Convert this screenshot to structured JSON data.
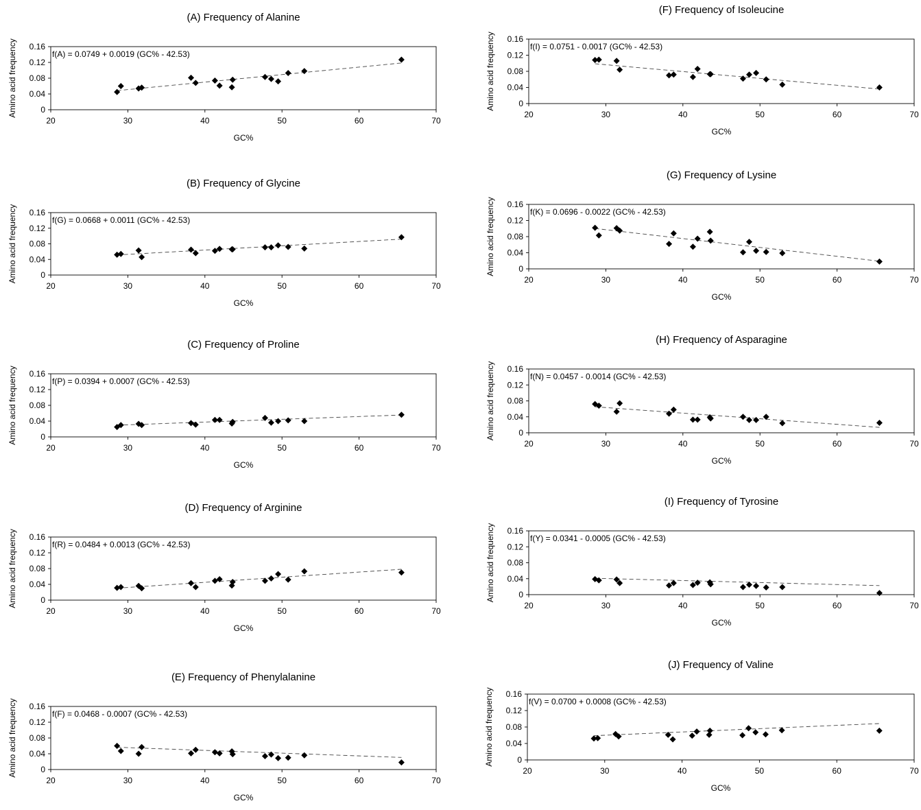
{
  "colors": {
    "marker": "#000000",
    "frame": "#000000",
    "trendline": "#444444"
  },
  "chart_data": [
    {
      "type": "scatter",
      "title": "(A) Frequency of Alanine",
      "xlabel": "GC%",
      "ylabel": "Amino acid frequency",
      "xlim": [
        20,
        70
      ],
      "ylim": [
        0,
        0.16
      ],
      "xticks": [
        "20",
        "30",
        "40",
        "50",
        "60",
        "70"
      ],
      "yticks": [
        "0",
        "0.04",
        "0.08",
        "0.12",
        "0.16"
      ],
      "grid": false,
      "equation": "f(A) = 0.0749 + 0.0019 (GC% - 42.53)",
      "trend": {
        "intercept": 0.0749,
        "slope": 0.0019,
        "center": 42.53
      },
      "series": [
        {
          "points": [
            [
              28.6,
              0.045
            ],
            [
              29.1,
              0.06
            ],
            [
              31.4,
              0.054
            ],
            [
              31.8,
              0.056
            ],
            [
              38.2,
              0.081
            ],
            [
              38.8,
              0.068
            ],
            [
              41.3,
              0.074
            ],
            [
              41.9,
              0.061
            ],
            [
              43.5,
              0.057
            ],
            [
              43.6,
              0.076
            ],
            [
              47.8,
              0.083
            ],
            [
              48.6,
              0.078
            ],
            [
              49.5,
              0.072
            ],
            [
              50.8,
              0.093
            ],
            [
              52.9,
              0.098
            ],
            [
              65.5,
              0.127
            ]
          ]
        }
      ]
    },
    {
      "type": "scatter",
      "title": "(B) Frequency of Glycine",
      "xlabel": "GC%",
      "ylabel": "Amino acid frequency",
      "xlim": [
        20,
        70
      ],
      "ylim": [
        0,
        0.16
      ],
      "xticks": [
        "20",
        "30",
        "40",
        "50",
        "60",
        "70"
      ],
      "yticks": [
        "0",
        "0.04",
        "0.08",
        "0.12",
        "0.16"
      ],
      "grid": false,
      "equation": "f(G) = 0.0668 + 0.0011 (GC% - 42.53)",
      "trend": {
        "intercept": 0.0668,
        "slope": 0.0011,
        "center": 42.53
      },
      "series": [
        {
          "points": [
            [
              28.6,
              0.052
            ],
            [
              29.1,
              0.054
            ],
            [
              31.4,
              0.063
            ],
            [
              31.8,
              0.046
            ],
            [
              38.2,
              0.065
            ],
            [
              38.8,
              0.056
            ],
            [
              41.3,
              0.062
            ],
            [
              41.9,
              0.067
            ],
            [
              43.5,
              0.066
            ],
            [
              43.6,
              0.066
            ],
            [
              47.8,
              0.071
            ],
            [
              48.6,
              0.071
            ],
            [
              49.5,
              0.076
            ],
            [
              50.8,
              0.072
            ],
            [
              52.9,
              0.068
            ],
            [
              65.5,
              0.097
            ]
          ]
        }
      ]
    },
    {
      "type": "scatter",
      "title": "(C) Frequency of Proline",
      "xlabel": "GC%",
      "ylabel": "Amino acid frequency",
      "xlim": [
        20,
        70
      ],
      "ylim": [
        0,
        0.16
      ],
      "xticks": [
        "20",
        "30",
        "40",
        "50",
        "60",
        "70"
      ],
      "yticks": [
        "0",
        "0.04",
        "0.08",
        "0.12",
        "0.16"
      ],
      "grid": false,
      "equation": "f(P) = 0.0394 + 0.0007 (GC% - 42.53)",
      "trend": {
        "intercept": 0.0394,
        "slope": 0.0007,
        "center": 42.53
      },
      "series": [
        {
          "points": [
            [
              28.6,
              0.025
            ],
            [
              29.1,
              0.03
            ],
            [
              31.4,
              0.033
            ],
            [
              31.8,
              0.03
            ],
            [
              38.2,
              0.035
            ],
            [
              38.8,
              0.031
            ],
            [
              41.3,
              0.043
            ],
            [
              41.9,
              0.043
            ],
            [
              43.5,
              0.034
            ],
            [
              43.6,
              0.038
            ],
            [
              47.8,
              0.048
            ],
            [
              48.6,
              0.036
            ],
            [
              49.5,
              0.04
            ],
            [
              50.8,
              0.042
            ],
            [
              52.9,
              0.04
            ],
            [
              65.5,
              0.056
            ]
          ]
        }
      ]
    },
    {
      "type": "scatter",
      "title": "(D) Frequency of Arginine",
      "xlabel": "GC%",
      "ylabel": "Amino acid frequency",
      "xlim": [
        20,
        70
      ],
      "ylim": [
        0,
        0.16
      ],
      "xticks": [
        "20",
        "30",
        "40",
        "50",
        "60",
        "70"
      ],
      "yticks": [
        "0",
        "0.04",
        "0.08",
        "0.12",
        "0.16"
      ],
      "grid": false,
      "equation": "f(R) = 0.0484 + 0.0013 (GC% - 42.53)",
      "trend": {
        "intercept": 0.0484,
        "slope": 0.0013,
        "center": 42.53
      },
      "series": [
        {
          "points": [
            [
              28.6,
              0.031
            ],
            [
              29.1,
              0.033
            ],
            [
              31.4,
              0.036
            ],
            [
              31.8,
              0.03
            ],
            [
              38.2,
              0.043
            ],
            [
              38.8,
              0.033
            ],
            [
              41.3,
              0.049
            ],
            [
              41.9,
              0.053
            ],
            [
              43.5,
              0.037
            ],
            [
              43.6,
              0.046
            ],
            [
              47.8,
              0.049
            ],
            [
              48.6,
              0.055
            ],
            [
              49.5,
              0.066
            ],
            [
              50.8,
              0.052
            ],
            [
              52.9,
              0.073
            ],
            [
              65.5,
              0.07
            ]
          ]
        }
      ]
    },
    {
      "type": "scatter",
      "title": "(E) Frequency of Phenylalanine",
      "xlabel": "GC%",
      "ylabel": "Amino acid frequency",
      "xlim": [
        20,
        70
      ],
      "ylim": [
        0,
        0.16
      ],
      "xticks": [
        "20",
        "30",
        "40",
        "50",
        "60",
        "70"
      ],
      "yticks": [
        "0",
        "0.04",
        "0.08",
        "0.12",
        "0.16"
      ],
      "grid": false,
      "equation": "f(F) = 0.0468 - 0.0007 (GC% - 42.53)",
      "trend": {
        "intercept": 0.0468,
        "slope": -0.0007,
        "center": 42.53
      },
      "series": [
        {
          "points": [
            [
              28.6,
              0.06
            ],
            [
              29.1,
              0.047
            ],
            [
              31.4,
              0.04
            ],
            [
              31.8,
              0.057
            ],
            [
              38.2,
              0.041
            ],
            [
              38.8,
              0.05
            ],
            [
              41.3,
              0.044
            ],
            [
              41.9,
              0.041
            ],
            [
              43.5,
              0.046
            ],
            [
              43.6,
              0.039
            ],
            [
              47.8,
              0.034
            ],
            [
              48.6,
              0.038
            ],
            [
              49.5,
              0.029
            ],
            [
              50.8,
              0.03
            ],
            [
              52.9,
              0.036
            ],
            [
              65.5,
              0.018
            ]
          ]
        }
      ]
    },
    {
      "type": "scatter",
      "title": "(F) Frequency of Isoleucine",
      "xlabel": "GC%",
      "ylabel": "Amino acid frequency",
      "xlim": [
        20,
        70
      ],
      "ylim": [
        0,
        0.16
      ],
      "xticks": [
        "20",
        "30",
        "40",
        "50",
        "60",
        "70"
      ],
      "yticks": [
        "0",
        "0.04",
        "0.08",
        "0.12",
        "0.16"
      ],
      "grid": false,
      "equation": "f(I) = 0.0751 - 0.0017 (GC% - 42.53)",
      "trend": {
        "intercept": 0.0751,
        "slope": -0.0017,
        "center": 42.53
      },
      "series": [
        {
          "points": [
            [
              28.6,
              0.108
            ],
            [
              29.1,
              0.109
            ],
            [
              31.4,
              0.106
            ],
            [
              31.8,
              0.084
            ],
            [
              38.2,
              0.07
            ],
            [
              38.8,
              0.072
            ],
            [
              41.3,
              0.066
            ],
            [
              41.9,
              0.086
            ],
            [
              43.5,
              0.073
            ],
            [
              43.6,
              0.073
            ],
            [
              47.8,
              0.062
            ],
            [
              48.6,
              0.072
            ],
            [
              49.5,
              0.076
            ],
            [
              50.8,
              0.06
            ],
            [
              52.9,
              0.047
            ],
            [
              65.5,
              0.04
            ]
          ]
        }
      ]
    },
    {
      "type": "scatter",
      "title": "(G) Frequency of Lysine",
      "xlabel": "GC%",
      "ylabel": "Amino acid frequency",
      "xlim": [
        20,
        70
      ],
      "ylim": [
        0,
        0.16
      ],
      "xticks": [
        "20",
        "30",
        "40",
        "50",
        "60",
        "70"
      ],
      "yticks": [
        "0",
        "0.04",
        "0.08",
        "0.12",
        "0.16"
      ],
      "grid": false,
      "equation": "f(K) = 0.0696 - 0.0022 (GC% - 42.53)",
      "trend": {
        "intercept": 0.0696,
        "slope": -0.0022,
        "center": 42.53
      },
      "series": [
        {
          "points": [
            [
              28.6,
              0.102
            ],
            [
              29.1,
              0.083
            ],
            [
              31.4,
              0.101
            ],
            [
              31.8,
              0.095
            ],
            [
              38.2,
              0.062
            ],
            [
              38.8,
              0.088
            ],
            [
              41.3,
              0.055
            ],
            [
              41.9,
              0.075
            ],
            [
              43.5,
              0.092
            ],
            [
              43.6,
              0.07
            ],
            [
              47.8,
              0.041
            ],
            [
              48.6,
              0.067
            ],
            [
              49.5,
              0.045
            ],
            [
              50.8,
              0.042
            ],
            [
              52.9,
              0.039
            ],
            [
              65.5,
              0.018
            ]
          ]
        }
      ]
    },
    {
      "type": "scatter",
      "title": "(H) Frequency of Asparagine",
      "xlabel": "GC%",
      "ylabel": "Amino acid frequency",
      "xlim": [
        20,
        70
      ],
      "ylim": [
        0,
        0.16
      ],
      "xticks": [
        "20",
        "30",
        "40",
        "50",
        "60",
        "70"
      ],
      "yticks": [
        "0",
        "0.04",
        "0.08",
        "0.12",
        "0.16"
      ],
      "grid": false,
      "equation": "f(N) = 0.0457 - 0.0014 (GC% - 42.53)",
      "trend": {
        "intercept": 0.0457,
        "slope": -0.0014,
        "center": 42.53
      },
      "series": [
        {
          "points": [
            [
              28.6,
              0.072
            ],
            [
              29.1,
              0.068
            ],
            [
              31.4,
              0.053
            ],
            [
              31.8,
              0.074
            ],
            [
              38.2,
              0.048
            ],
            [
              38.8,
              0.058
            ],
            [
              41.3,
              0.033
            ],
            [
              41.9,
              0.033
            ],
            [
              43.5,
              0.039
            ],
            [
              43.6,
              0.036
            ],
            [
              47.8,
              0.04
            ],
            [
              48.6,
              0.032
            ],
            [
              49.5,
              0.032
            ],
            [
              50.8,
              0.04
            ],
            [
              52.9,
              0.024
            ],
            [
              65.5,
              0.025
            ]
          ]
        }
      ]
    },
    {
      "type": "scatter",
      "title": "(I) Frequency of Tyrosine",
      "xlabel": "GC%",
      "ylabel": "Amino acid frequency",
      "xlim": [
        20,
        70
      ],
      "ylim": [
        0,
        0.16
      ],
      "xticks": [
        "20",
        "30",
        "40",
        "50",
        "60",
        "70"
      ],
      "yticks": [
        "0",
        "0.04",
        "0.08",
        "0.12",
        "0.16"
      ],
      "grid": false,
      "equation": "f(Y) = 0.0341 - 0.0005 (GC% - 42.53)",
      "trend": {
        "intercept": 0.0341,
        "slope": -0.0005,
        "center": 42.53
      },
      "series": [
        {
          "points": [
            [
              28.6,
              0.039
            ],
            [
              29.1,
              0.036
            ],
            [
              31.4,
              0.038
            ],
            [
              31.8,
              0.029
            ],
            [
              38.2,
              0.023
            ],
            [
              38.8,
              0.029
            ],
            [
              41.3,
              0.024
            ],
            [
              41.9,
              0.03
            ],
            [
              43.5,
              0.031
            ],
            [
              43.6,
              0.026
            ],
            [
              47.8,
              0.019
            ],
            [
              48.6,
              0.025
            ],
            [
              49.5,
              0.022
            ],
            [
              50.8,
              0.018
            ],
            [
              52.9,
              0.019
            ],
            [
              65.5,
              0.004
            ]
          ]
        }
      ]
    },
    {
      "type": "scatter",
      "title": "(J) Frequency of Valine",
      "xlabel": "GC%",
      "ylabel": "Amino acid frequency",
      "xlim": [
        20,
        70
      ],
      "ylim": [
        0,
        0.16
      ],
      "xticks": [
        "20",
        "30",
        "40",
        "50",
        "60",
        "70"
      ],
      "yticks": [
        "0",
        "0.04",
        "0.08",
        "0.12",
        "0.16"
      ],
      "grid": false,
      "equation": "f(V) = 0.0700 + 0.0008 (GC% - 42.53)",
      "trend": {
        "intercept": 0.07,
        "slope": 0.0008,
        "center": 42.53
      },
      "series": [
        {
          "points": [
            [
              28.6,
              0.052
            ],
            [
              29.1,
              0.053
            ],
            [
              31.4,
              0.063
            ],
            [
              31.8,
              0.057
            ],
            [
              38.2,
              0.061
            ],
            [
              38.8,
              0.05
            ],
            [
              41.3,
              0.059
            ],
            [
              41.9,
              0.069
            ],
            [
              43.5,
              0.061
            ],
            [
              43.6,
              0.071
            ],
            [
              47.8,
              0.06
            ],
            [
              48.6,
              0.077
            ],
            [
              49.5,
              0.067
            ],
            [
              50.8,
              0.062
            ],
            [
              52.9,
              0.072
            ],
            [
              65.5,
              0.071
            ]
          ]
        }
      ]
    }
  ]
}
